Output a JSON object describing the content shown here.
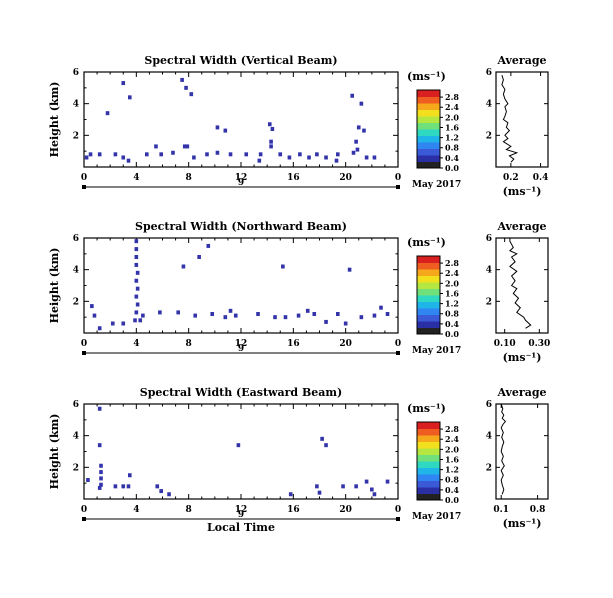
{
  "chart_data": [
    {
      "type": "heatmap",
      "title": "Spectral Width (Vertical Beam)",
      "ylabel": "Height (km)",
      "xlim": [
        0,
        24
      ],
      "ylim": [
        0,
        6
      ],
      "xticks": [
        "0",
        "4",
        "8",
        "12",
        "16",
        "20",
        "0"
      ],
      "yticks": [
        "2",
        "4",
        "6"
      ],
      "date_label": "May 2017",
      "day_label": "9",
      "colorbar": {
        "unit": "(ms⁻¹)",
        "ticks": [
          "0.0",
          "0.4",
          "0.8",
          "1.2",
          "1.6",
          "2.0",
          "2.4",
          "2.8"
        ]
      },
      "cells": [
        [
          3,
          5.3
        ],
        [
          3.5,
          4.4
        ],
        [
          1.8,
          3.4
        ],
        [
          7.5,
          5.5
        ],
        [
          7.8,
          5.0
        ],
        [
          8.2,
          4.6
        ],
        [
          5.5,
          1.3
        ],
        [
          7.7,
          1.3
        ],
        [
          10.2,
          2.5
        ],
        [
          10.8,
          2.3
        ],
        [
          14.2,
          2.7
        ],
        [
          14.4,
          2.4
        ],
        [
          14.3,
          1.6
        ],
        [
          20.5,
          4.5
        ],
        [
          21.2,
          4.0
        ],
        [
          21.0,
          2.5
        ],
        [
          21.4,
          2.3
        ],
        [
          20.8,
          1.6
        ],
        [
          0.5,
          0.8
        ],
        [
          1.2,
          0.8
        ],
        [
          2.4,
          0.8
        ],
        [
          3.0,
          0.6
        ],
        [
          3.4,
          0.4
        ],
        [
          4.8,
          0.8
        ],
        [
          5.9,
          0.8
        ],
        [
          6.8,
          0.9
        ],
        [
          7.9,
          1.3
        ],
        [
          8.4,
          0.6
        ],
        [
          9.4,
          0.8
        ],
        [
          10.2,
          0.9
        ],
        [
          11.2,
          0.8
        ],
        [
          12.4,
          0.8
        ],
        [
          13.5,
          0.8
        ],
        [
          14.3,
          1.3
        ],
        [
          15.0,
          0.8
        ],
        [
          15.7,
          0.6
        ],
        [
          16.5,
          0.8
        ],
        [
          17.2,
          0.6
        ],
        [
          17.8,
          0.8
        ],
        [
          18.5,
          0.6
        ],
        [
          19.4,
          0.8
        ],
        [
          20.6,
          0.9
        ],
        [
          20.9,
          1.1
        ],
        [
          21.6,
          0.6
        ],
        [
          22.2,
          0.6
        ],
        [
          13.4,
          0.4
        ],
        [
          19.3,
          0.4
        ],
        [
          0.2,
          0.6
        ]
      ],
      "average": {
        "title": "Average",
        "xlabel": "(ms⁻¹)",
        "xticks": [
          "0.2",
          "0.4"
        ],
        "yticks": [
          "2",
          "4",
          "6"
        ],
        "xlim": [
          0.1,
          0.45
        ],
        "ylim": [
          0,
          6
        ],
        "x": [
          0.2,
          0.22,
          0.19,
          0.24,
          0.17,
          0.2,
          0.15,
          0.18,
          0.16,
          0.19,
          0.17,
          0.18,
          0.15,
          0.16,
          0.17,
          0.16,
          0.18,
          0.16,
          0.15,
          0.16,
          0.14,
          0.15,
          0.14
        ],
        "y": [
          0.3,
          0.5,
          0.7,
          0.9,
          1.1,
          1.3,
          1.6,
          1.8,
          2.0,
          2.3,
          2.5,
          2.8,
          3.0,
          3.2,
          3.5,
          3.8,
          4.0,
          4.3,
          4.6,
          4.9,
          5.2,
          5.5,
          5.8
        ]
      }
    },
    {
      "type": "heatmap",
      "title": "Spectral Width (Northward Beam)",
      "ylabel": "Height (km)",
      "xlim": [
        0,
        24
      ],
      "ylim": [
        0,
        6
      ],
      "xticks": [
        "0",
        "4",
        "8",
        "12",
        "16",
        "20",
        "0"
      ],
      "yticks": [
        "2",
        "4",
        "6"
      ],
      "date_label": "May 2017",
      "day_label": "9",
      "colorbar": {
        "unit": "(ms⁻¹)",
        "ticks": [
          "0.0",
          "0.4",
          "0.8",
          "1.2",
          "1.6",
          "2.0",
          "2.4",
          "2.8"
        ]
      },
      "cells": [
        [
          4.0,
          5.8
        ],
        [
          4.0,
          5.3
        ],
        [
          4.0,
          4.8
        ],
        [
          4.0,
          4.3
        ],
        [
          4.1,
          3.8
        ],
        [
          4.0,
          3.3
        ],
        [
          4.1,
          2.8
        ],
        [
          4.0,
          2.3
        ],
        [
          4.1,
          1.8
        ],
        [
          4.0,
          1.3
        ],
        [
          3.9,
          0.8
        ],
        [
          4.3,
          0.8
        ],
        [
          4.5,
          1.1
        ],
        [
          9.5,
          5.5
        ],
        [
          8.8,
          4.8
        ],
        [
          7.6,
          4.2
        ],
        [
          15.2,
          4.2
        ],
        [
          20.3,
          4.0
        ],
        [
          0.6,
          1.7
        ],
        [
          0.8,
          1.1
        ],
        [
          1.2,
          0.3
        ],
        [
          2.2,
          0.6
        ],
        [
          3.0,
          0.6
        ],
        [
          5.8,
          1.3
        ],
        [
          7.2,
          1.3
        ],
        [
          8.5,
          1.1
        ],
        [
          9.8,
          1.2
        ],
        [
          11.2,
          1.4
        ],
        [
          11.6,
          1.1
        ],
        [
          13.3,
          1.2
        ],
        [
          15.4,
          1.0
        ],
        [
          16.4,
          1.1
        ],
        [
          17.1,
          1.4
        ],
        [
          17.6,
          1.2
        ],
        [
          18.5,
          0.7
        ],
        [
          19.4,
          1.2
        ],
        [
          20.0,
          0.6
        ],
        [
          21.2,
          1.0
        ],
        [
          22.2,
          1.1
        ],
        [
          22.7,
          1.6
        ],
        [
          23.2,
          1.2
        ],
        [
          14.6,
          1.0
        ],
        [
          10.8,
          1.0
        ]
      ],
      "average": {
        "title": "Average",
        "xlabel": "(ms⁻¹)",
        "xticks": [
          "0.10",
          "0.30"
        ],
        "yticks": [
          "2",
          "4",
          "6"
        ],
        "xlim": [
          0.05,
          0.35
        ],
        "ylim": [
          0,
          6
        ],
        "x": [
          0.22,
          0.25,
          0.22,
          0.21,
          0.17,
          0.19,
          0.16,
          0.18,
          0.15,
          0.17,
          0.14,
          0.16,
          0.14,
          0.17,
          0.13,
          0.16,
          0.14,
          0.17,
          0.13,
          0.15,
          0.14,
          0.13,
          0.13
        ],
        "y": [
          0.3,
          0.5,
          0.8,
          1.0,
          1.3,
          1.6,
          1.9,
          2.2,
          2.5,
          2.8,
          3.0,
          3.3,
          3.6,
          3.9,
          4.2,
          4.5,
          4.8,
          5.0,
          5.2,
          5.4,
          5.6,
          5.8,
          6.0
        ]
      }
    },
    {
      "type": "heatmap",
      "title": "Spectral Width (Eastward Beam)",
      "ylabel": "Height (km)",
      "xlabel": "Local Time",
      "xlim": [
        0,
        24
      ],
      "ylim": [
        0,
        6
      ],
      "xticks": [
        "0",
        "4",
        "8",
        "12",
        "16",
        "20",
        "0"
      ],
      "yticks": [
        "2",
        "4",
        "6"
      ],
      "date_label": "May 2017",
      "day_label": "9",
      "colorbar": {
        "unit": "(ms⁻¹)",
        "ticks": [
          "0.0",
          "0.4",
          "0.8",
          "1.2",
          "1.6",
          "2.0",
          "2.4",
          "2.8"
        ]
      },
      "cells": [
        [
          1.2,
          5.7
        ],
        [
          1.2,
          3.4
        ],
        [
          1.3,
          2.1
        ],
        [
          1.3,
          1.7
        ],
        [
          1.3,
          1.3
        ],
        [
          1.3,
          0.9
        ],
        [
          1.2,
          0.7
        ],
        [
          0.3,
          1.2
        ],
        [
          2.4,
          0.8
        ],
        [
          3.0,
          0.8
        ],
        [
          3.4,
          0.8
        ],
        [
          5.6,
          0.8
        ],
        [
          5.9,
          0.5
        ],
        [
          6.5,
          0.3
        ],
        [
          11.8,
          3.4
        ],
        [
          15.8,
          0.3
        ],
        [
          18.2,
          3.8
        ],
        [
          18.5,
          3.4
        ],
        [
          17.8,
          0.8
        ],
        [
          18.0,
          0.4
        ],
        [
          19.8,
          0.8
        ],
        [
          20.8,
          0.8
        ],
        [
          21.6,
          1.1
        ],
        [
          22.0,
          0.6
        ],
        [
          22.2,
          0.3
        ],
        [
          23.2,
          1.1
        ],
        [
          3.5,
          1.5
        ]
      ],
      "average": {
        "title": "Average",
        "xlabel": "(ms⁻¹)",
        "xticks": [
          "0.1",
          "0.8"
        ],
        "yticks": [
          "2",
          "4",
          "6"
        ],
        "xlim": [
          0.0,
          1.0
        ],
        "ylim": [
          0,
          6
        ],
        "x": [
          0.12,
          0.15,
          0.12,
          0.1,
          0.14,
          0.1,
          0.16,
          0.11,
          0.14,
          0.1,
          0.12,
          0.15,
          0.11,
          0.14,
          0.1,
          0.13,
          0.18,
          0.12,
          0.15,
          0.11,
          0.13,
          0.11,
          0.1
        ],
        "y": [
          0.3,
          0.6,
          0.9,
          1.2,
          1.5,
          1.8,
          2.1,
          2.4,
          2.7,
          3.0,
          3.3,
          3.6,
          3.9,
          4.2,
          4.5,
          4.7,
          4.9,
          5.1,
          5.3,
          5.5,
          5.7,
          5.9,
          6.0
        ]
      }
    }
  ]
}
